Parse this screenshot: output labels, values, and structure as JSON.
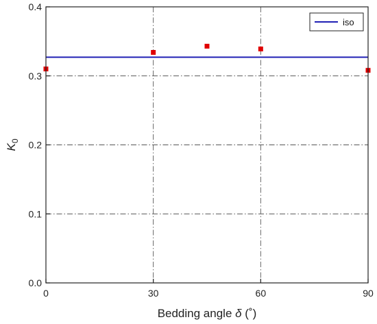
{
  "chart_data": {
    "type": "scatter",
    "xlabel_main": "Bedding angle ",
    "xlabel_symbol": "δ",
    "xlabel_unit": " (˚)",
    "ylabel_main": "K",
    "ylabel_sub": "0",
    "xlim": [
      0,
      90
    ],
    "ylim": [
      0.0,
      0.4
    ],
    "xticks": [
      0,
      30,
      60,
      90
    ],
    "xtick_labels": [
      "0",
      "30",
      "60",
      "90"
    ],
    "yticks": [
      0.0,
      0.1,
      0.2,
      0.3,
      0.4
    ],
    "ytick_labels": [
      "0.0",
      "0.1",
      "0.2",
      "0.3",
      "0.4"
    ],
    "grid": true,
    "legend_position": "top-right",
    "hline": {
      "name": "iso",
      "y": 0.327,
      "color": "#1f1fb4"
    },
    "points": {
      "color": "#e00000",
      "x": [
        0,
        30,
        45,
        60,
        90
      ],
      "y": [
        0.31,
        0.334,
        0.343,
        0.339,
        0.308
      ]
    }
  }
}
